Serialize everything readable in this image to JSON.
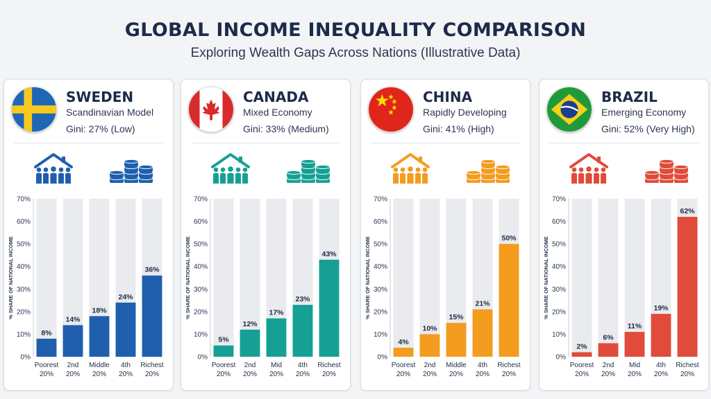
{
  "title": "GLOBAL INCOME INEQUALITY COMPARISON",
  "subtitle": "Exploring Wealth Gaps Across Nations (Illustrative Data)",
  "chart_data": [
    {
      "type": "bar",
      "country": "SWEDEN",
      "model": "Scandinavian Model",
      "gini": "Gini: 27% (Low)",
      "flag": "sweden-flag",
      "color": "#1f5fae",
      "categories": [
        "Poorest 20%",
        "2nd 20%",
        "Middle 20%",
        "4th 20%",
        "Richest 20%"
      ],
      "values": [
        8,
        14,
        18,
        24,
        36
      ],
      "value_labels": [
        "8%",
        "14%",
        "18%",
        "24%",
        "36%"
      ],
      "ylabel": "% SHARE OF NATIONAL INCOME",
      "ylim": [
        0,
        70
      ],
      "yticks": [
        "0%",
        "10%",
        "20%",
        "30%",
        "40%",
        "50%",
        "60%",
        "70%"
      ]
    },
    {
      "type": "bar",
      "country": "CANADA",
      "model": "Mixed Economy",
      "gini": "Gini: 33% (Medium)",
      "flag": "canada-flag",
      "color": "#16a095",
      "categories": [
        "Poorest 20%",
        "2nd 20%",
        "Mid 20%",
        "4th 20%",
        "Richest 20%"
      ],
      "values": [
        5,
        12,
        17,
        23,
        43
      ],
      "value_labels": [
        "5%",
        "12%",
        "17%",
        "23%",
        "43%"
      ],
      "ylabel": "% SHARE OF NATIONAL INCOME",
      "ylim": [
        0,
        70
      ],
      "yticks": [
        "0%",
        "10%",
        "20%",
        "30%",
        "40%",
        "50%",
        "60%",
        "70%"
      ]
    },
    {
      "type": "bar",
      "country": "CHINA",
      "model": "Rapidly Developing",
      "gini": "Gini: 41% (High)",
      "flag": "china-flag",
      "color": "#f39c1f",
      "categories": [
        "Poorest 20%",
        "2nd 20%",
        "Middle 20%",
        "4th 20%",
        "Richest 20%"
      ],
      "values": [
        4,
        10,
        15,
        21,
        50
      ],
      "value_labels": [
        "4%",
        "10%",
        "15%",
        "21%",
        "50%"
      ],
      "ylabel": "% SHARE OF NATIONAL INCOME",
      "ylim": [
        0,
        70
      ],
      "yticks": [
        "0%",
        "10%",
        "20%",
        "30%",
        "40%",
        "50%",
        "60%",
        "70%"
      ]
    },
    {
      "type": "bar",
      "country": "BRAZIL",
      "model": "Emerging Economy",
      "gini": "Gini: 52% (Very High)",
      "flag": "brazil-flag",
      "color": "#e04b3a",
      "categories": [
        "Poorest 20%",
        "2nd 20%",
        "Mid 20%",
        "4th 20%",
        "Richest 20%"
      ],
      "values": [
        2,
        6,
        11,
        19,
        62
      ],
      "value_labels": [
        "2%",
        "6%",
        "11%",
        "19%",
        "62%"
      ],
      "ylabel": "% SHARE OF NATIONAL INCOME",
      "ylim": [
        0,
        70
      ],
      "yticks": [
        "0%",
        "10%",
        "20%",
        "30%",
        "40%",
        "50%",
        "60%",
        "70%"
      ]
    }
  ]
}
